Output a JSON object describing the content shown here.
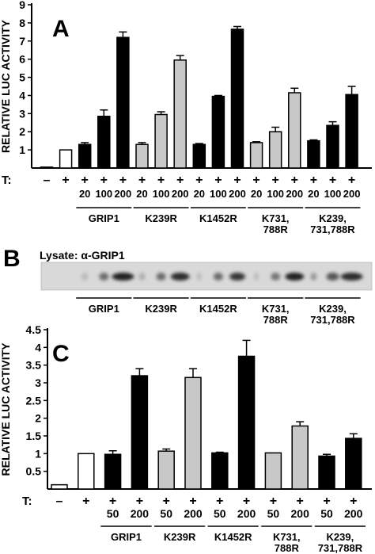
{
  "panels": {
    "a_label": "A",
    "b_label": "B",
    "c_label": "C",
    "lysate_label": "Lysate: α-GRIP1",
    "t_label": "T:"
  },
  "blot": {
    "groups": [
      "GRIP1",
      "K239R",
      "K1452R",
      "K731,\n788R",
      "K239,\n731,788R"
    ]
  },
  "colors": {
    "black_bar": "#000000",
    "gray_bar": "#c8c8c8",
    "white_bar": "#ffffff"
  },
  "chart_data": [
    {
      "type": "bar",
      "panel": "A",
      "ylabel": "RELATIVE LUC ACTIVITY",
      "ylim": [
        0,
        9
      ],
      "yticks": [
        1,
        2,
        3,
        4,
        5,
        6,
        7,
        8,
        9
      ],
      "tick_row1": [
        "–",
        "+",
        "+",
        "+",
        "+",
        "+",
        "+",
        "+",
        "+",
        "+",
        "+",
        "+",
        "+",
        "+",
        "+",
        "+",
        "+"
      ],
      "tick_row2": [
        "",
        "",
        "20",
        "100",
        "200",
        "20",
        "100",
        "200",
        "20",
        "100",
        "200",
        "20",
        "100",
        "200",
        "20",
        "100",
        "200"
      ],
      "groups": [
        {
          "label": "GRIP1",
          "start": 2,
          "end": 4
        },
        {
          "label": "K239R",
          "start": 5,
          "end": 7
        },
        {
          "label": "K1452R",
          "start": 8,
          "end": 10
        },
        {
          "label": "K731,\n788R",
          "start": 11,
          "end": 13
        },
        {
          "label": "K239,\n731,788R",
          "start": 14,
          "end": 16
        }
      ],
      "bars": [
        {
          "value": 0.05,
          "error": 0,
          "fill": "black"
        },
        {
          "value": 1.0,
          "error": 0,
          "fill": "white"
        },
        {
          "value": 1.3,
          "error": 0.1,
          "fill": "black"
        },
        {
          "value": 2.85,
          "error": 0.35,
          "fill": "black"
        },
        {
          "value": 7.2,
          "error": 0.3,
          "fill": "black"
        },
        {
          "value": 1.3,
          "error": 0.1,
          "fill": "gray"
        },
        {
          "value": 2.95,
          "error": 0.15,
          "fill": "gray"
        },
        {
          "value": 5.95,
          "error": 0.25,
          "fill": "gray"
        },
        {
          "value": 1.3,
          "error": 0.05,
          "fill": "black"
        },
        {
          "value": 3.95,
          "error": 0.05,
          "fill": "black"
        },
        {
          "value": 7.65,
          "error": 0.15,
          "fill": "black"
        },
        {
          "value": 1.4,
          "error": 0.05,
          "fill": "gray"
        },
        {
          "value": 2.0,
          "error": 0.25,
          "fill": "gray"
        },
        {
          "value": 4.15,
          "error": 0.25,
          "fill": "gray"
        },
        {
          "value": 1.5,
          "error": 0.05,
          "fill": "black"
        },
        {
          "value": 2.35,
          "error": 0.2,
          "fill": "black"
        },
        {
          "value": 4.05,
          "error": 0.45,
          "fill": "black"
        }
      ]
    },
    {
      "type": "bar",
      "panel": "C",
      "ylabel": "RELATIVE LUC ACTIVITY",
      "ylim": [
        0,
        4.5
      ],
      "yticks": [
        0.5,
        1,
        1.5,
        2,
        2.5,
        3,
        3.5,
        4,
        4.5
      ],
      "tick_row1": [
        "–",
        "+",
        "+",
        "+",
        "+",
        "+",
        "+",
        "+",
        "+",
        "+",
        "+",
        "+"
      ],
      "tick_row2": [
        "",
        "",
        "50",
        "200",
        "50",
        "200",
        "50",
        "200",
        "50",
        "200",
        "50",
        "200"
      ],
      "groups": [
        {
          "label": "GRIP1",
          "start": 2,
          "end": 3
        },
        {
          "label": "K239R",
          "start": 4,
          "end": 5
        },
        {
          "label": "K1452R",
          "start": 6,
          "end": 7
        },
        {
          "label": "K731,\n788R",
          "start": 8,
          "end": 9
        },
        {
          "label": "K239,\n731,788R",
          "start": 10,
          "end": 11
        }
      ],
      "bars": [
        {
          "value": 0.12,
          "error": 0,
          "fill": "white"
        },
        {
          "value": 1.0,
          "error": 0,
          "fill": "white"
        },
        {
          "value": 0.98,
          "error": 0.1,
          "fill": "black"
        },
        {
          "value": 3.2,
          "error": 0.2,
          "fill": "black"
        },
        {
          "value": 1.07,
          "error": 0.06,
          "fill": "gray"
        },
        {
          "value": 3.15,
          "error": 0.25,
          "fill": "gray"
        },
        {
          "value": 1.02,
          "error": 0.02,
          "fill": "black"
        },
        {
          "value": 3.75,
          "error": 0.45,
          "fill": "black"
        },
        {
          "value": 1.02,
          "error": 0,
          "fill": "gray"
        },
        {
          "value": 1.78,
          "error": 0.12,
          "fill": "gray"
        },
        {
          "value": 0.93,
          "error": 0.05,
          "fill": "black"
        },
        {
          "value": 1.43,
          "error": 0.13,
          "fill": "black"
        }
      ]
    }
  ]
}
